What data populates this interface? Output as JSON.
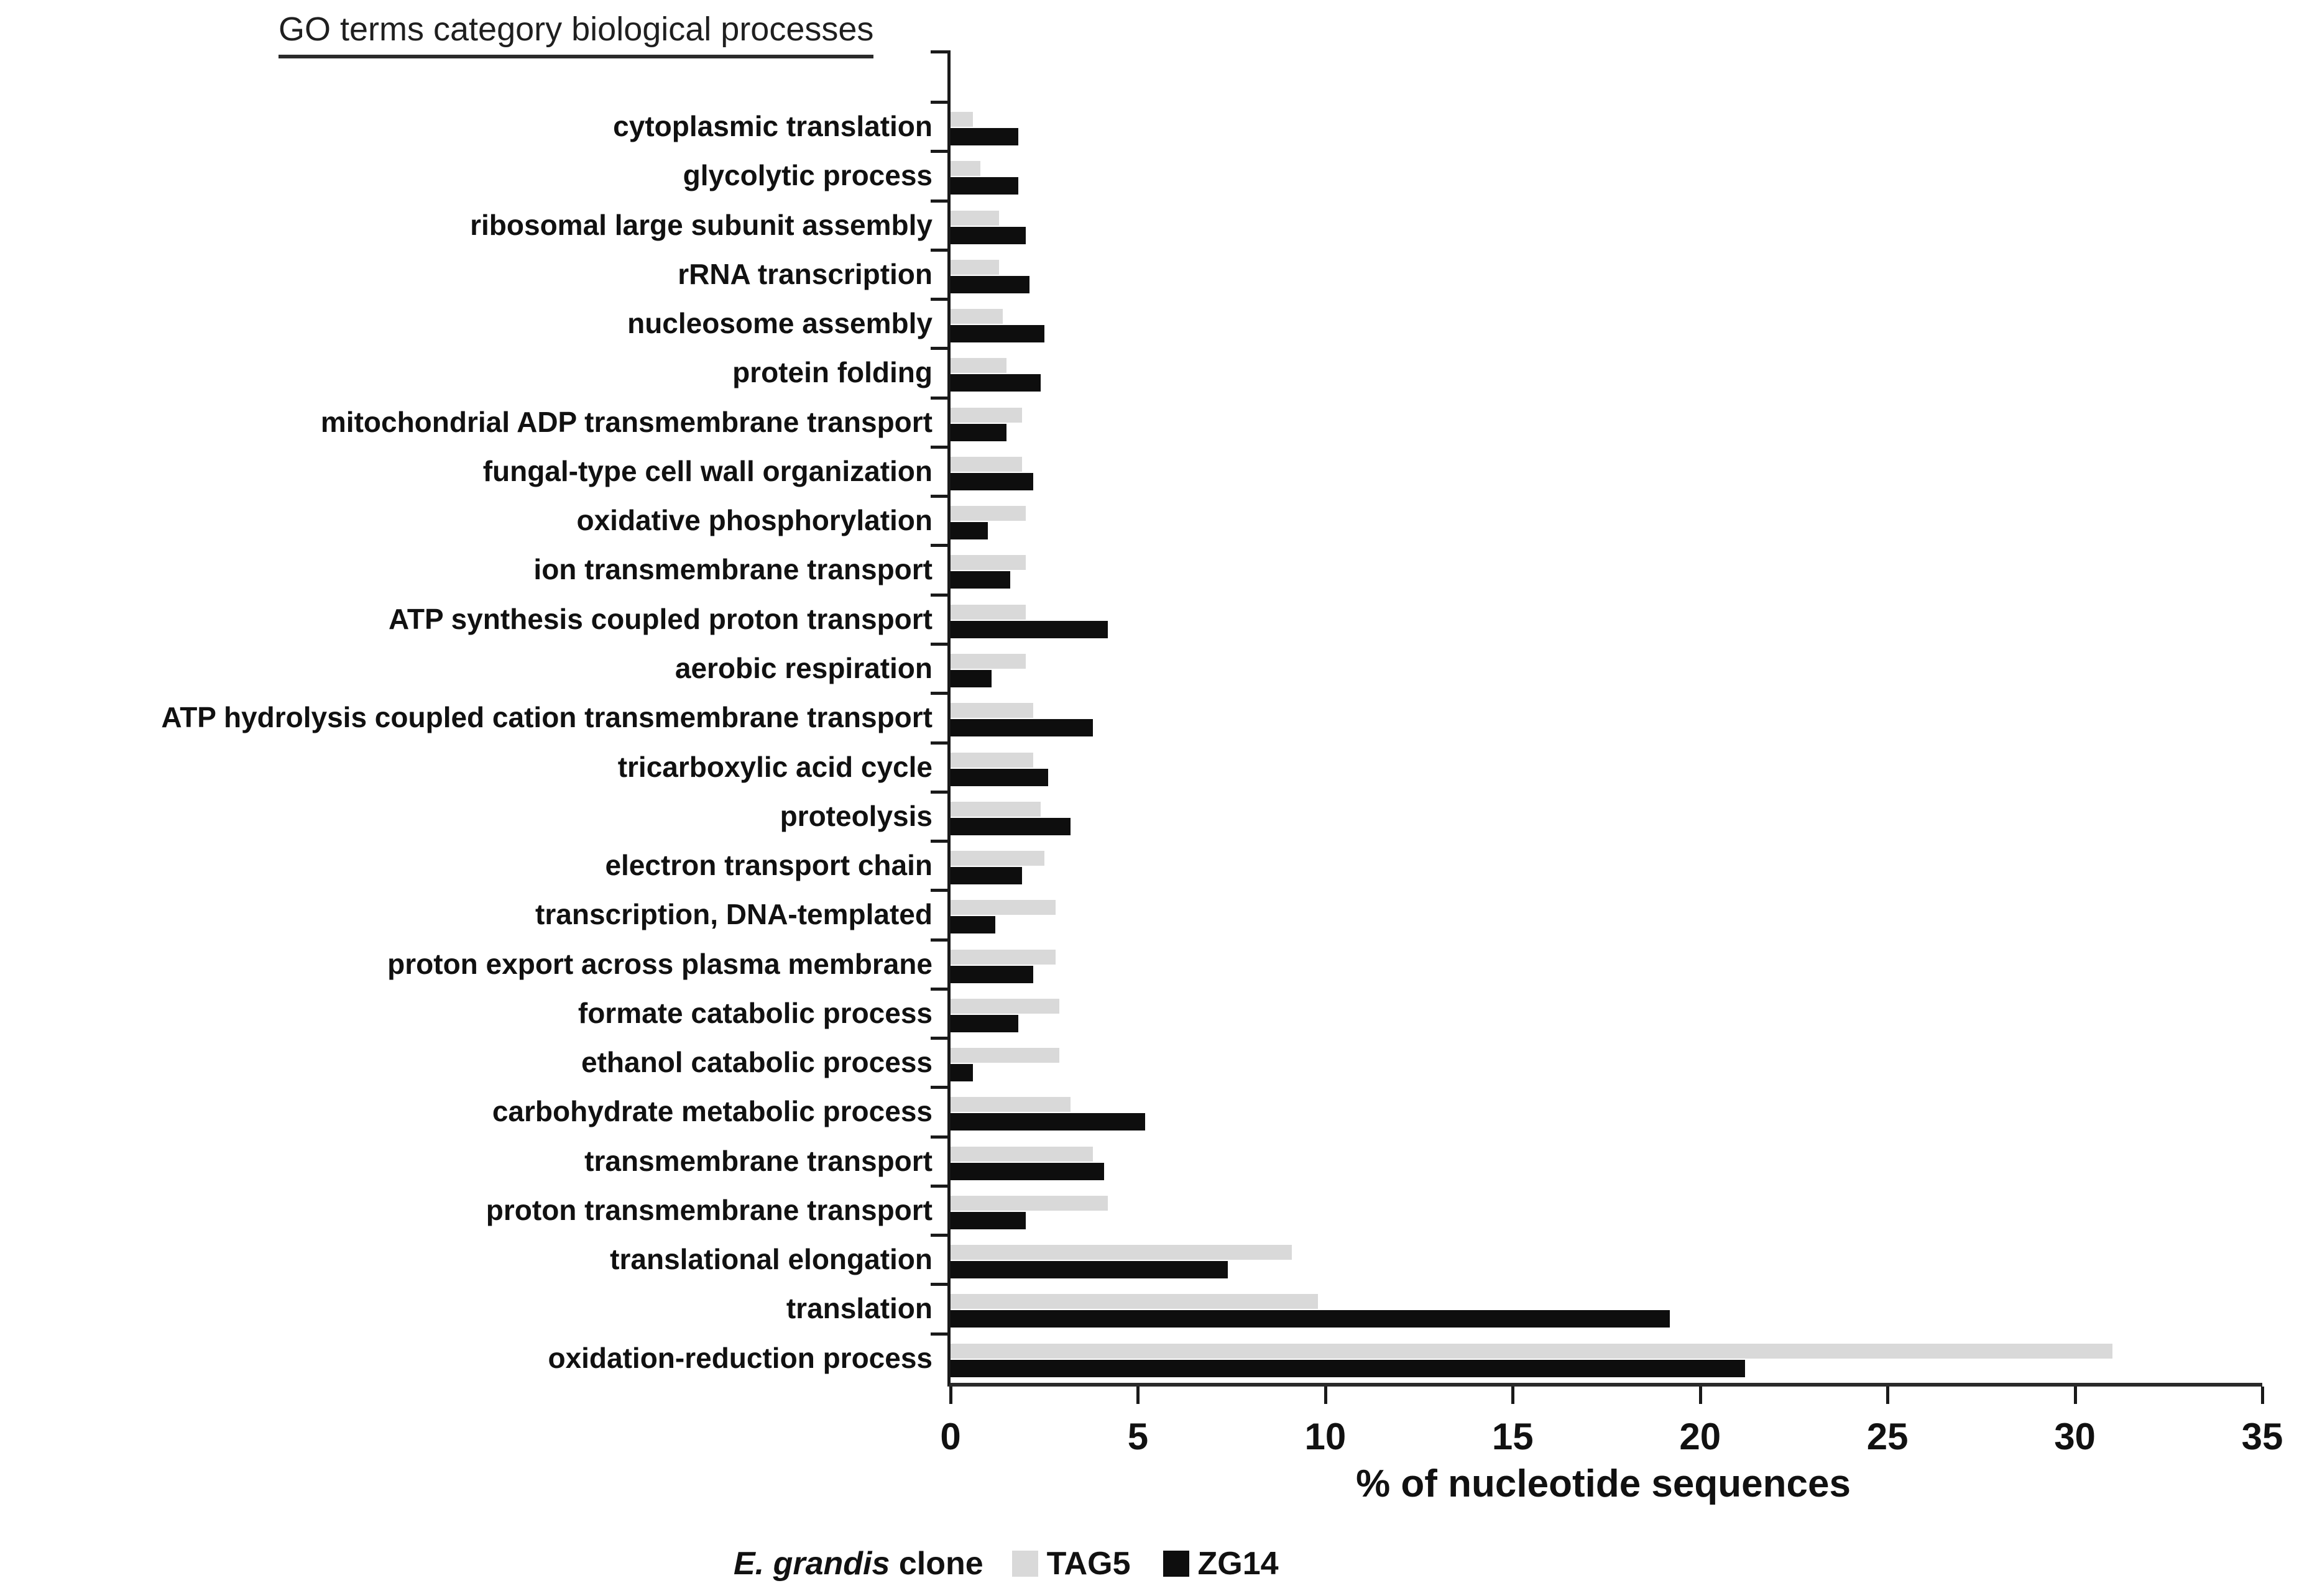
{
  "title": "GO terms category biological processes",
  "chart_data": {
    "type": "bar",
    "orientation": "horizontal",
    "title": "GO terms category biological processes",
    "xlabel": "% of nucleotide sequences",
    "xlim": [
      0,
      35
    ],
    "x_ticks": [
      0,
      5,
      10,
      15,
      20,
      25,
      30,
      35
    ],
    "grid": false,
    "legend_position": "bottom",
    "legend_title_italic": "E. grandis",
    "legend_title_rest": " clone",
    "categories": [
      "cytoplasmic translation",
      "glycolytic process",
      "ribosomal large subunit assembly",
      "rRNA transcription",
      "nucleosome assembly",
      "protein folding",
      "mitochondrial ADP transmembrane transport",
      "fungal-type cell wall organization",
      "oxidative phosphorylation",
      "ion transmembrane transport",
      "ATP synthesis coupled proton transport",
      "aerobic respiration",
      "ATP hydrolysis coupled cation transmembrane transport",
      "tricarboxylic acid cycle",
      "proteolysis",
      "electron transport chain",
      "transcription, DNA-templated",
      "proton export across plasma membrane",
      "formate catabolic process",
      "ethanol catabolic process",
      "carbohydrate metabolic process",
      "transmembrane transport",
      "proton transmembrane transport",
      "translational elongation",
      "translation",
      "oxidation-reduction process"
    ],
    "series": [
      {
        "name": "TAG5",
        "color": "#d9d9d9",
        "values": [
          0.6,
          0.8,
          1.3,
          1.3,
          1.4,
          1.5,
          1.9,
          1.9,
          2.0,
          2.0,
          2.0,
          2.0,
          2.2,
          2.2,
          2.4,
          2.5,
          2.8,
          2.8,
          2.9,
          2.9,
          3.2,
          3.8,
          4.2,
          9.1,
          9.8,
          31.0
        ]
      },
      {
        "name": "ZG14",
        "color": "#0e0e0e",
        "values": [
          1.8,
          1.8,
          2.0,
          2.1,
          2.5,
          2.4,
          1.5,
          2.2,
          1.0,
          1.6,
          4.2,
          1.1,
          3.8,
          2.6,
          3.2,
          1.9,
          1.2,
          2.2,
          1.8,
          0.6,
          5.2,
          4.1,
          2.0,
          7.4,
          19.2,
          21.2
        ]
      }
    ]
  }
}
